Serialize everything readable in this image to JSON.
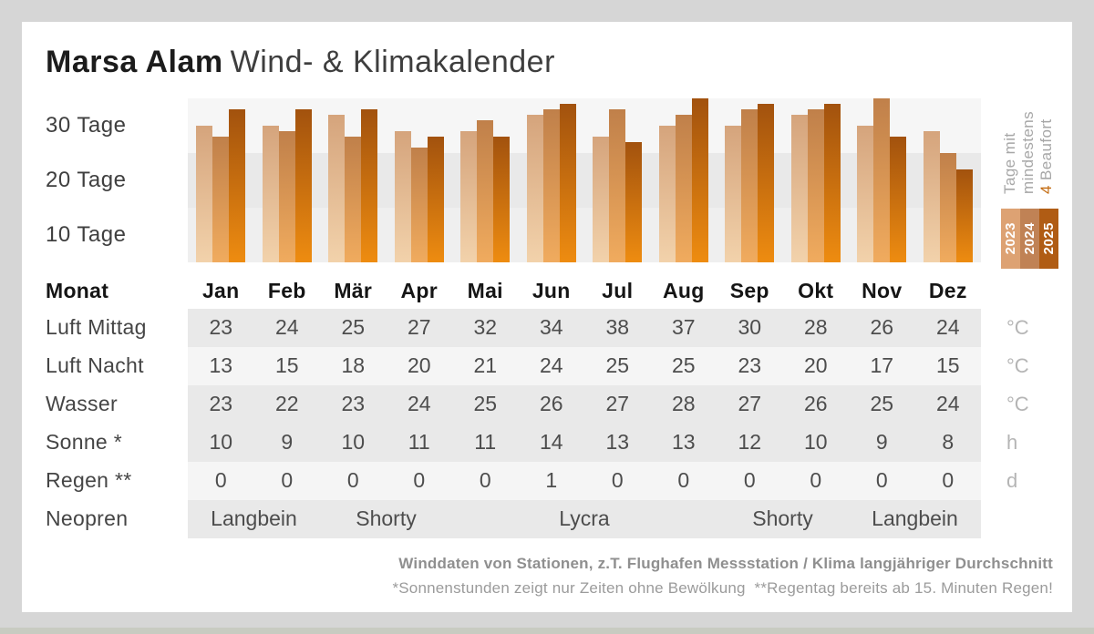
{
  "page": {
    "background": "#d6d6d6",
    "card_background": "#ffffff",
    "bottom_strip_color": "#c8cbc1"
  },
  "title": {
    "bold": "Marsa Alam",
    "regular": "Wind- & Klimakalender"
  },
  "chart_data": {
    "type": "bar",
    "title": "Marsa Alam Wind- & Klimakalender",
    "ylabel_lines": [
      "Tage mit",
      "mindestens"
    ],
    "ylabel_line3_num": "4",
    "ylabel_line3_rest": " Beaufort",
    "y_axis_band_labels": [
      "30 Tage",
      "20 Tage",
      "10 Tage"
    ],
    "ylim": [
      0,
      30
    ],
    "unit": "Tage",
    "grid": "horizontal-bands",
    "legend_position": "right",
    "categories": [
      "Jan",
      "Feb",
      "Mär",
      "Apr",
      "Mai",
      "Jun",
      "Jul",
      "Aug",
      "Sep",
      "Okt",
      "Nov",
      "Dez"
    ],
    "series": [
      {
        "name": "2023",
        "values": [
          25,
          25,
          27,
          24,
          24,
          27,
          23,
          25,
          25,
          27,
          25,
          24
        ],
        "color_top": "#d5a47c",
        "color_bottom": "#f2d2ab",
        "legend_color": "#dda273"
      },
      {
        "name": "2024",
        "values": [
          23,
          24,
          23,
          21,
          26,
          28,
          28,
          27,
          28,
          28,
          30,
          20
        ],
        "color_top": "#c0804a",
        "color_bottom": "#f0ab5e",
        "legend_color": "#c08255"
      },
      {
        "name": "2025",
        "values": [
          28,
          28,
          28,
          23,
          23,
          29,
          22,
          30,
          29,
          29,
          23,
          17
        ],
        "color_top": "#a2520e",
        "color_bottom": "#ee8c10",
        "legend_color": "#b05c14"
      }
    ]
  },
  "table": {
    "month_header_label": "Monat",
    "months": [
      "Jan",
      "Feb",
      "Mär",
      "Apr",
      "Mai",
      "Jun",
      "Jul",
      "Aug",
      "Sep",
      "Okt",
      "Nov",
      "Dez"
    ],
    "rows": [
      {
        "label": "Luft Mittag",
        "unit": "°C",
        "shade": "dark",
        "values": [
          23,
          24,
          25,
          27,
          32,
          34,
          38,
          37,
          30,
          28,
          26,
          24
        ]
      },
      {
        "label": "Luft Nacht",
        "unit": "°C",
        "shade": "light",
        "values": [
          13,
          15,
          18,
          20,
          21,
          24,
          25,
          25,
          23,
          20,
          17,
          15
        ]
      },
      {
        "label": "Wasser",
        "unit": "°C",
        "shade": "dark",
        "values": [
          23,
          22,
          23,
          24,
          25,
          26,
          27,
          28,
          27,
          26,
          25,
          24
        ]
      },
      {
        "label": "Sonne *",
        "unit": "h",
        "shade": "dark",
        "values": [
          10,
          9,
          10,
          11,
          11,
          14,
          13,
          13,
          12,
          10,
          9,
          8
        ]
      },
      {
        "label": "Regen **",
        "unit": "d",
        "shade": "light",
        "values": [
          0,
          0,
          0,
          0,
          0,
          1,
          0,
          0,
          0,
          0,
          0,
          0
        ]
      }
    ],
    "neopren": {
      "label": "Neopren",
      "shade": "dark",
      "spans": [
        {
          "label": "Langbein",
          "cols": 2
        },
        {
          "label": "Shorty",
          "cols": 2
        },
        {
          "label": "Lycra",
          "cols": 4
        },
        {
          "label": "Shorty",
          "cols": 2
        },
        {
          "label": "Langbein",
          "cols": 2
        }
      ]
    }
  },
  "footer": {
    "line1": "Winddaten von Stationen, z.T. Flughafen Messstation / Klima langjähriger Durchschnitt",
    "line2": "*Sonnenstunden zeigt nur Zeiten ohne Bewölkung  **Regentag bereits ab 15. Minuten Regen!"
  }
}
